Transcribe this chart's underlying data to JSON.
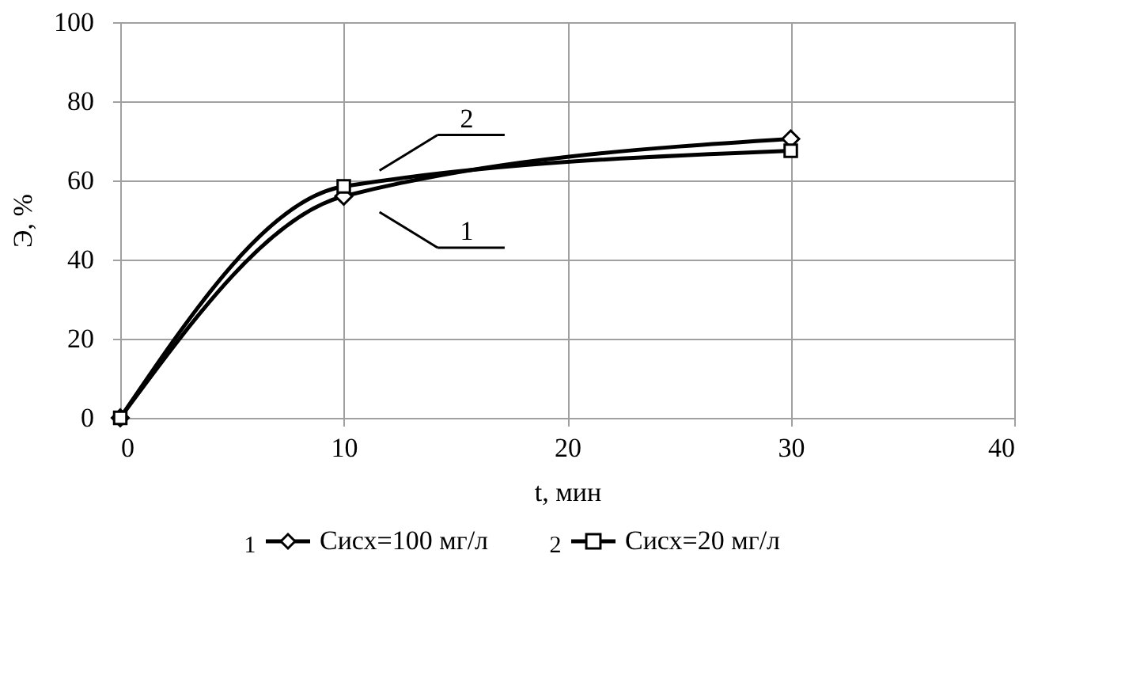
{
  "chart_data": {
    "type": "line",
    "xlabel": "t, мин",
    "ylabel": "Э, %",
    "x": [
      0,
      10,
      30
    ],
    "series": [
      {
        "name": "Сисх=100 мг/л",
        "color": "#000000",
        "marker": "diamond",
        "values": [
          0,
          56,
          70.5
        ]
      },
      {
        "name": "Сисх=20 мг/л",
        "color": "#000000",
        "marker": "square",
        "values": [
          0,
          58.5,
          67.5
        ]
      }
    ],
    "annotations": [
      "1",
      "2"
    ],
    "xlim": [
      0,
      40
    ],
    "xticks": [
      0,
      10,
      20,
      30,
      40
    ],
    "ylim": [
      0,
      100
    ],
    "yticks": [
      0,
      20,
      40,
      60,
      80,
      100
    ],
    "grid": true,
    "legend": "bottom",
    "line_style": "solid"
  }
}
